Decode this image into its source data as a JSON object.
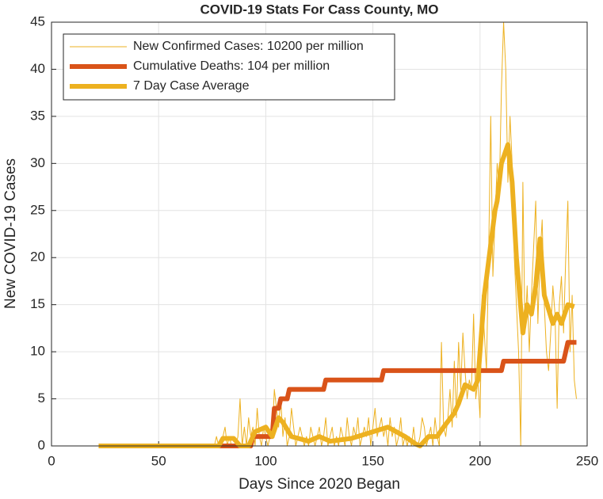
{
  "chart_data": {
    "type": "line",
    "title": "COVID-19 Stats For Cass County, MO",
    "x_label": "Days Since 2020 Began",
    "y_label": "New COVID-19 Cases",
    "xlim": [
      0,
      250
    ],
    "xticks": [
      0,
      50,
      100,
      150,
      200,
      250
    ],
    "ylim": [
      0,
      45
    ],
    "yticks": [
      0,
      5,
      10,
      15,
      20,
      25,
      30,
      35,
      40,
      45
    ],
    "grid": true,
    "legend_position": "top-left",
    "series": [
      {
        "name": "New Confirmed Cases: 10200 per million",
        "color": "#EDB120",
        "width": 1,
        "x": [
          22,
          76,
          77,
          78,
          79,
          80,
          81,
          82,
          83,
          84,
          85,
          86,
          87,
          88,
          89,
          90,
          91,
          92,
          93,
          94,
          95,
          96,
          97,
          98,
          99,
          100,
          101,
          102,
          103,
          104,
          105,
          106,
          107,
          108,
          109,
          110,
          111,
          112,
          113,
          114,
          115,
          116,
          117,
          118,
          119,
          120,
          121,
          122,
          123,
          124,
          125,
          126,
          127,
          128,
          129,
          130,
          131,
          132,
          133,
          134,
          135,
          136,
          137,
          138,
          139,
          140,
          141,
          142,
          143,
          144,
          145,
          146,
          147,
          148,
          149,
          150,
          151,
          152,
          153,
          154,
          155,
          156,
          157,
          158,
          159,
          160,
          161,
          162,
          163,
          164,
          165,
          166,
          167,
          168,
          169,
          170,
          171,
          172,
          173,
          174,
          175,
          176,
          177,
          178,
          179,
          180,
          181,
          182,
          183,
          184,
          185,
          186,
          187,
          188,
          189,
          190,
          191,
          192,
          193,
          194,
          195,
          196,
          197,
          198,
          199,
          200,
          201,
          202,
          203,
          204,
          205,
          206,
          207,
          208,
          209,
          210,
          211,
          212,
          213,
          214,
          215,
          216,
          217,
          218,
          219,
          220,
          221,
          222,
          223,
          224,
          225,
          226,
          227,
          228,
          229,
          230,
          231,
          232,
          233,
          234,
          235,
          236,
          237,
          238,
          239,
          240,
          241,
          242,
          243,
          244,
          245
        ],
        "values": [
          0,
          0,
          1,
          0,
          0,
          1,
          2,
          0,
          1,
          0,
          0,
          0,
          1,
          5,
          0,
          2,
          0,
          3,
          1,
          2,
          0,
          4,
          1,
          0,
          2,
          1,
          0,
          1,
          1,
          6,
          4,
          2,
          5,
          1,
          3,
          0,
          1,
          4,
          2,
          0,
          1,
          2,
          1,
          0,
          1,
          0,
          2,
          1,
          0,
          1,
          2,
          0,
          1,
          3,
          0,
          1,
          2,
          0,
          1,
          0,
          2,
          1,
          0,
          3,
          1,
          0,
          2,
          1,
          3,
          0,
          1,
          2,
          1,
          3,
          0,
          2,
          4,
          1,
          2,
          3,
          1,
          2,
          0,
          3,
          1,
          2,
          0,
          1,
          3,
          0,
          1,
          0,
          1,
          0,
          2,
          0,
          0,
          1,
          3,
          2,
          0,
          1,
          2,
          0,
          3,
          1,
          0,
          11,
          2,
          1,
          3,
          6,
          2,
          9,
          3,
          11,
          6,
          12,
          8,
          5,
          7,
          6,
          14,
          5,
          7,
          3,
          16,
          12,
          8,
          20,
          35,
          18,
          24,
          30,
          27,
          38,
          45,
          40,
          28,
          35,
          30,
          20,
          15,
          10,
          0,
          28,
          12,
          17,
          10,
          16,
          21,
          26,
          13,
          20,
          24,
          15,
          10,
          8,
          12,
          17,
          14,
          4,
          15,
          18,
          12,
          20,
          26,
          10,
          16,
          7,
          5
        ]
      },
      {
        "name": "Cumulative Deaths: 104 per million",
        "color": "#D95319",
        "width": 6,
        "x": [
          22,
          93,
          94,
          103,
          104,
          106,
          107,
          110,
          111,
          127,
          128,
          154,
          155,
          210,
          211,
          239,
          240,
          241,
          245
        ],
        "values": [
          0,
          0,
          1,
          1,
          4,
          4,
          5,
          5,
          6,
          6,
          7,
          7,
          8,
          8,
          9,
          9,
          10,
          11,
          11
        ]
      },
      {
        "name": "7 Day Case Average",
        "color": "#EDB120",
        "width": 6,
        "x": [
          22,
          78,
          80,
          85,
          88,
          92,
          95,
          100,
          103,
          106,
          108,
          112,
          120,
          125,
          130,
          140,
          150,
          157,
          165,
          170,
          172,
          176,
          180,
          183,
          188,
          190,
          193,
          197,
          199,
          202,
          207,
          208,
          210,
          213,
          215,
          217,
          220,
          222,
          224,
          226,
          228,
          230,
          234,
          236,
          238,
          241,
          244
        ],
        "values": [
          0,
          0,
          0.8,
          0.8,
          0,
          0,
          1.5,
          2,
          1,
          3,
          2.5,
          1,
          0.5,
          1,
          0.5,
          0.8,
          1.5,
          2,
          1,
          0.2,
          0,
          1,
          1,
          2,
          3.5,
          4.5,
          6.5,
          6,
          7,
          16,
          25,
          26,
          30,
          32,
          28,
          20,
          12,
          15,
          14,
          17,
          22,
          16,
          13,
          14,
          13,
          15,
          14.8
        ]
      }
    ]
  }
}
